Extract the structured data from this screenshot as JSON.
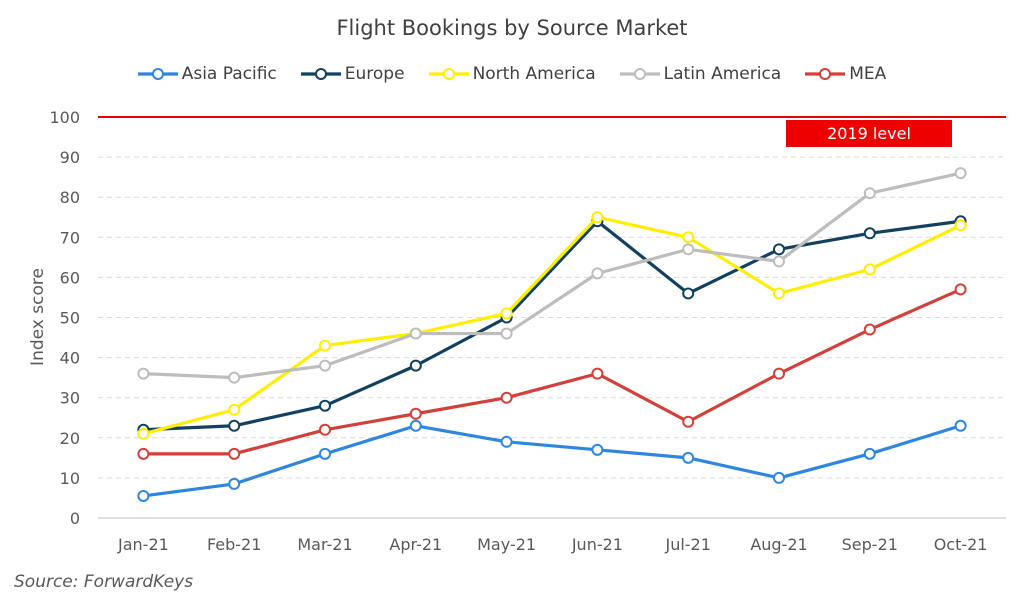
{
  "chart_data": {
    "type": "line",
    "title": "Flight Bookings by Source Market",
    "ylabel": "Index  score",
    "xlabel": "",
    "categories": [
      "Jan-21",
      "Feb-21",
      "Mar-21",
      "Apr-21",
      "May-21",
      "Jun-21",
      "Jul-21",
      "Aug-21",
      "Sep-21",
      "Oct-21"
    ],
    "ylim": [
      0,
      100
    ],
    "yticks": [
      0,
      10,
      20,
      30,
      40,
      50,
      60,
      70,
      80,
      90,
      100
    ],
    "grid": true,
    "legend_position": "top",
    "series": [
      {
        "name": "Asia Pacific",
        "color": "#2e86de",
        "values": [
          5.5,
          8.5,
          16,
          23,
          19,
          17,
          15,
          10,
          16,
          23
        ]
      },
      {
        "name": "Europe",
        "color": "#12405f",
        "values": [
          22,
          23,
          28,
          38,
          50,
          74,
          56,
          67,
          71,
          74
        ]
      },
      {
        "name": "North America",
        "color": "#ffee00",
        "values": [
          21,
          27,
          43,
          46,
          51,
          75,
          70,
          56,
          62,
          73
        ]
      },
      {
        "name": "Latin America",
        "color": "#bdbdbd",
        "values": [
          36,
          35,
          38,
          46,
          46,
          61,
          67,
          64,
          81,
          86
        ]
      },
      {
        "name": "MEA",
        "color": "#d2403b",
        "values": [
          16,
          16,
          22,
          26,
          30,
          36,
          24,
          36,
          47,
          57
        ]
      }
    ],
    "reference_line": {
      "value": 100,
      "label": "2019 level",
      "color": "#ee0000"
    }
  },
  "source": "Source: ForwardKeys"
}
